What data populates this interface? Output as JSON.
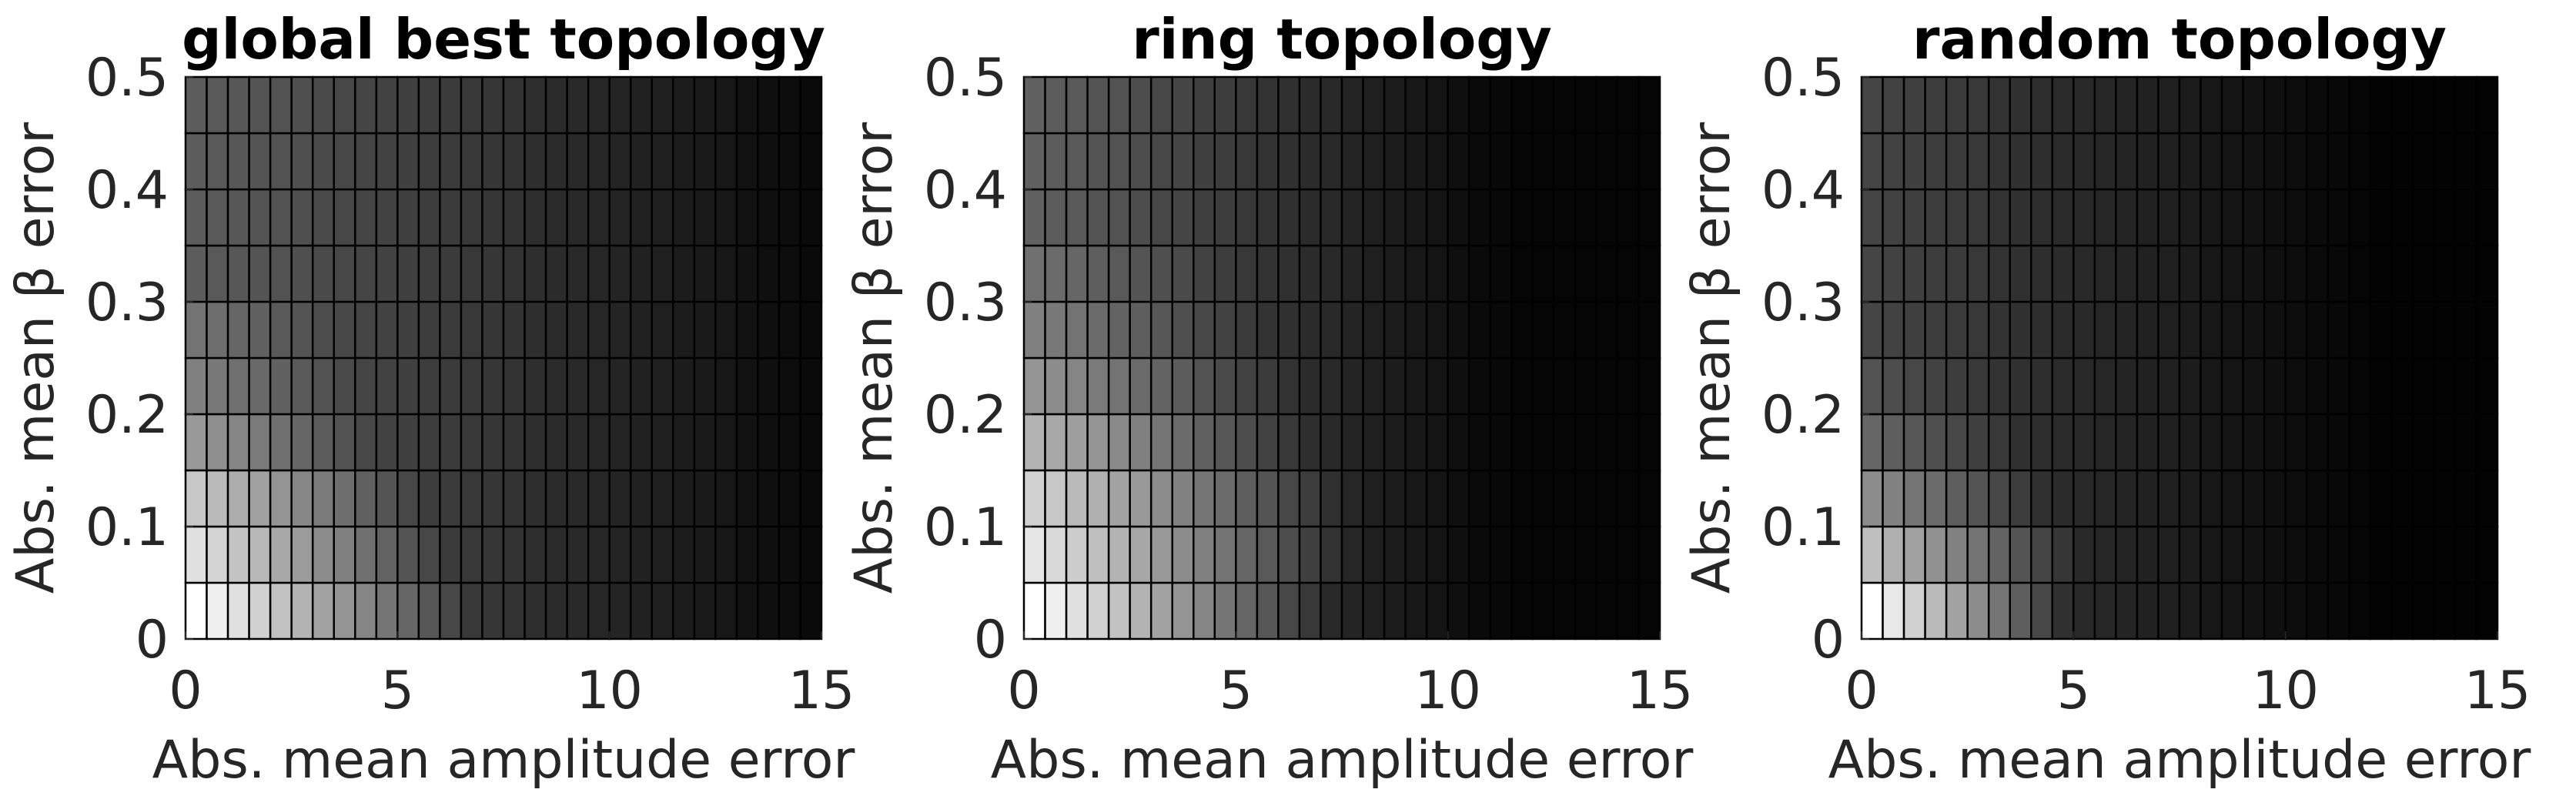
{
  "chart_data": [
    {
      "type": "heatmap",
      "title": "global best topology",
      "xlabel": "Abs. mean amplitude error",
      "ylabel": "Abs. mean β error",
      "colormap": "gray",
      "xlim": [
        0,
        15
      ],
      "ylim": [
        0,
        0.5
      ],
      "xticks": [
        0,
        5,
        10,
        15
      ],
      "yticks": [
        0,
        0.1,
        0.2,
        0.3,
        0.4,
        0.5
      ],
      "z": [
        [
          1,
          0.94,
          0.88,
          0.82,
          0.76,
          0.7,
          0.64,
          0.58,
          0.52,
          0.46,
          0.4,
          0.34,
          0.28,
          0.22,
          0.21,
          0.2,
          0.18,
          0.17,
          0.16,
          0.15,
          0.14,
          0.13,
          0.12,
          0.11,
          0.1,
          0.09,
          0.07,
          0.06,
          0.05,
          0.04
        ],
        [
          0.88,
          0.83,
          0.77,
          0.72,
          0.66,
          0.61,
          0.55,
          0.5,
          0.44,
          0.39,
          0.33,
          0.28,
          0.23,
          0.22,
          0.21,
          0.2,
          0.18,
          0.17,
          0.16,
          0.15,
          0.14,
          0.13,
          0.12,
          0.11,
          0.1,
          0.09,
          0.07,
          0.06,
          0.05,
          0.04
        ],
        [
          0.78,
          0.73,
          0.68,
          0.63,
          0.58,
          0.53,
          0.48,
          0.43,
          0.38,
          0.33,
          0.28,
          0.24,
          0.23,
          0.22,
          0.21,
          0.2,
          0.18,
          0.17,
          0.16,
          0.15,
          0.14,
          0.13,
          0.12,
          0.11,
          0.1,
          0.09,
          0.07,
          0.06,
          0.05,
          0.04
        ],
        [
          0.6,
          0.56,
          0.52,
          0.48,
          0.44,
          0.4,
          0.36,
          0.32,
          0.28,
          0.26,
          0.25,
          0.24,
          0.23,
          0.22,
          0.21,
          0.2,
          0.18,
          0.17,
          0.16,
          0.15,
          0.14,
          0.13,
          0.12,
          0.11,
          0.1,
          0.09,
          0.07,
          0.06,
          0.05,
          0.04
        ],
        [
          0.5,
          0.47,
          0.44,
          0.41,
          0.38,
          0.35,
          0.32,
          0.29,
          0.27,
          0.26,
          0.25,
          0.24,
          0.23,
          0.22,
          0.21,
          0.2,
          0.18,
          0.17,
          0.16,
          0.15,
          0.14,
          0.13,
          0.12,
          0.11,
          0.1,
          0.09,
          0.07,
          0.06,
          0.05,
          0.04
        ],
        [
          0.45,
          0.43,
          0.4,
          0.38,
          0.35,
          0.33,
          0.3,
          0.28,
          0.27,
          0.26,
          0.25,
          0.24,
          0.23,
          0.22,
          0.21,
          0.2,
          0.18,
          0.17,
          0.16,
          0.15,
          0.14,
          0.13,
          0.12,
          0.11,
          0.1,
          0.09,
          0.07,
          0.06,
          0.05,
          0.04
        ],
        [
          0.36,
          0.35,
          0.34,
          0.33,
          0.32,
          0.31,
          0.29,
          0.28,
          0.27,
          0.26,
          0.25,
          0.24,
          0.23,
          0.22,
          0.21,
          0.2,
          0.18,
          0.17,
          0.16,
          0.15,
          0.14,
          0.13,
          0.12,
          0.11,
          0.1,
          0.09,
          0.07,
          0.06,
          0.05,
          0.04
        ],
        [
          0.36,
          0.35,
          0.34,
          0.33,
          0.32,
          0.31,
          0.29,
          0.28,
          0.27,
          0.26,
          0.25,
          0.24,
          0.23,
          0.22,
          0.21,
          0.2,
          0.18,
          0.17,
          0.16,
          0.15,
          0.14,
          0.13,
          0.12,
          0.11,
          0.1,
          0.09,
          0.07,
          0.06,
          0.05,
          0.04
        ],
        [
          0.36,
          0.35,
          0.34,
          0.33,
          0.32,
          0.31,
          0.29,
          0.28,
          0.27,
          0.26,
          0.25,
          0.24,
          0.23,
          0.22,
          0.21,
          0.2,
          0.18,
          0.17,
          0.16,
          0.15,
          0.14,
          0.13,
          0.12,
          0.11,
          0.1,
          0.09,
          0.07,
          0.06,
          0.05,
          0.04
        ],
        [
          0.36,
          0.35,
          0.34,
          0.33,
          0.32,
          0.31,
          0.29,
          0.28,
          0.27,
          0.26,
          0.25,
          0.24,
          0.23,
          0.22,
          0.21,
          0.2,
          0.18,
          0.17,
          0.16,
          0.15,
          0.14,
          0.13,
          0.12,
          0.11,
          0.1,
          0.09,
          0.07,
          0.06,
          0.05,
          0.04
        ]
      ]
    },
    {
      "type": "heatmap",
      "title": "ring topology",
      "xlabel": "Abs. mean amplitude error",
      "ylabel": "Abs. mean β error",
      "colormap": "gray",
      "xlim": [
        0,
        15
      ],
      "ylim": [
        0,
        0.5
      ],
      "xticks": [
        0,
        5,
        10,
        15
      ],
      "yticks": [
        0,
        0.1,
        0.2,
        0.3,
        0.4,
        0.5
      ],
      "z": [
        [
          1,
          0.94,
          0.88,
          0.82,
          0.76,
          0.7,
          0.64,
          0.58,
          0.52,
          0.46,
          0.4,
          0.34,
          0.28,
          0.22,
          0.16,
          0.14,
          0.12,
          0.11,
          0.09,
          0.08,
          0.06,
          0.04,
          0.03,
          0.02,
          0.02,
          0.02,
          0.02,
          0.02,
          0.02,
          0.02
        ],
        [
          0.9,
          0.85,
          0.8,
          0.75,
          0.7,
          0.65,
          0.6,
          0.55,
          0.5,
          0.45,
          0.4,
          0.35,
          0.3,
          0.25,
          0.2,
          0.15,
          0.12,
          0.11,
          0.09,
          0.08,
          0.06,
          0.04,
          0.03,
          0.02,
          0.02,
          0.02,
          0.02,
          0.02,
          0.02,
          0.02
        ],
        [
          0.82,
          0.78,
          0.73,
          0.69,
          0.64,
          0.6,
          0.55,
          0.51,
          0.46,
          0.42,
          0.37,
          0.33,
          0.28,
          0.24,
          0.19,
          0.15,
          0.12,
          0.11,
          0.09,
          0.08,
          0.06,
          0.04,
          0.03,
          0.02,
          0.02,
          0.02,
          0.02,
          0.02,
          0.02,
          0.02
        ],
        [
          0.7,
          0.66,
          0.62,
          0.58,
          0.54,
          0.5,
          0.46,
          0.42,
          0.38,
          0.34,
          0.3,
          0.26,
          0.22,
          0.18,
          0.16,
          0.14,
          0.12,
          0.11,
          0.09,
          0.08,
          0.06,
          0.04,
          0.03,
          0.02,
          0.02,
          0.02,
          0.02,
          0.02,
          0.02,
          0.02
        ],
        [
          0.58,
          0.55,
          0.52,
          0.48,
          0.45,
          0.42,
          0.39,
          0.36,
          0.32,
          0.29,
          0.26,
          0.23,
          0.2,
          0.17,
          0.16,
          0.14,
          0.12,
          0.11,
          0.09,
          0.08,
          0.06,
          0.04,
          0.03,
          0.02,
          0.02,
          0.02,
          0.02,
          0.02,
          0.02,
          0.02
        ],
        [
          0.5,
          0.47,
          0.45,
          0.42,
          0.39,
          0.37,
          0.34,
          0.31,
          0.28,
          0.26,
          0.23,
          0.2,
          0.19,
          0.17,
          0.16,
          0.14,
          0.12,
          0.11,
          0.09,
          0.08,
          0.06,
          0.04,
          0.03,
          0.02,
          0.02,
          0.02,
          0.02,
          0.02,
          0.02,
          0.02
        ],
        [
          0.44,
          0.42,
          0.4,
          0.37,
          0.35,
          0.33,
          0.31,
          0.29,
          0.26,
          0.24,
          0.22,
          0.2,
          0.19,
          0.17,
          0.16,
          0.14,
          0.12,
          0.11,
          0.09,
          0.08,
          0.06,
          0.04,
          0.03,
          0.02,
          0.02,
          0.02,
          0.02,
          0.02,
          0.02,
          0.02
        ],
        [
          0.38,
          0.36,
          0.35,
          0.33,
          0.32,
          0.3,
          0.28,
          0.27,
          0.25,
          0.24,
          0.22,
          0.2,
          0.19,
          0.17,
          0.16,
          0.14,
          0.12,
          0.11,
          0.09,
          0.08,
          0.06,
          0.04,
          0.03,
          0.02,
          0.02,
          0.02,
          0.02,
          0.02,
          0.02,
          0.02
        ],
        [
          0.38,
          0.36,
          0.35,
          0.33,
          0.32,
          0.3,
          0.28,
          0.27,
          0.25,
          0.24,
          0.22,
          0.2,
          0.19,
          0.17,
          0.16,
          0.14,
          0.12,
          0.11,
          0.09,
          0.08,
          0.06,
          0.04,
          0.03,
          0.02,
          0.02,
          0.02,
          0.02,
          0.02,
          0.02,
          0.02
        ],
        [
          0.38,
          0.36,
          0.35,
          0.33,
          0.32,
          0.3,
          0.28,
          0.27,
          0.25,
          0.24,
          0.22,
          0.2,
          0.19,
          0.17,
          0.16,
          0.14,
          0.12,
          0.11,
          0.09,
          0.08,
          0.06,
          0.04,
          0.03,
          0.02,
          0.02,
          0.02,
          0.02,
          0.02,
          0.02,
          0.02
        ]
      ]
    },
    {
      "type": "heatmap",
      "title": "random topology",
      "xlabel": "Abs. mean amplitude error",
      "ylabel": "Abs. mean β error",
      "colormap": "gray",
      "xlim": [
        0,
        15
      ],
      "ylim": [
        0,
        0.5
      ],
      "xticks": [
        0,
        5,
        10,
        15
      ],
      "yticks": [
        0,
        0.1,
        0.2,
        0.3,
        0.4,
        0.5
      ],
      "z": [
        [
          1,
          0.91,
          0.82,
          0.73,
          0.64,
          0.55,
          0.46,
          0.37,
          0.28,
          0.19,
          0.16,
          0.15,
          0.14,
          0.13,
          0.12,
          0.11,
          0.09,
          0.08,
          0.07,
          0.06,
          0.05,
          0.04,
          0.03,
          0.02,
          0.01,
          0.01,
          0.01,
          0.01,
          0.01,
          0.01
        ],
        [
          0.75,
          0.69,
          0.63,
          0.57,
          0.51,
          0.45,
          0.39,
          0.33,
          0.27,
          0.21,
          0.16,
          0.15,
          0.14,
          0.13,
          0.12,
          0.11,
          0.09,
          0.08,
          0.07,
          0.06,
          0.05,
          0.04,
          0.03,
          0.02,
          0.01,
          0.01,
          0.01,
          0.01,
          0.01,
          0.01
        ],
        [
          0.55,
          0.51,
          0.46,
          0.42,
          0.37,
          0.33,
          0.28,
          0.24,
          0.19,
          0.17,
          0.16,
          0.15,
          0.14,
          0.13,
          0.12,
          0.11,
          0.09,
          0.08,
          0.07,
          0.06,
          0.05,
          0.04,
          0.03,
          0.02,
          0.01,
          0.01,
          0.01,
          0.01,
          0.01,
          0.01
        ],
        [
          0.4,
          0.37,
          0.34,
          0.31,
          0.28,
          0.25,
          0.22,
          0.19,
          0.18,
          0.17,
          0.16,
          0.15,
          0.14,
          0.13,
          0.12,
          0.11,
          0.09,
          0.08,
          0.07,
          0.06,
          0.05,
          0.04,
          0.03,
          0.02,
          0.01,
          0.01,
          0.01,
          0.01,
          0.01,
          0.01
        ],
        [
          0.32,
          0.3,
          0.28,
          0.26,
          0.24,
          0.22,
          0.2,
          0.19,
          0.18,
          0.17,
          0.16,
          0.15,
          0.14,
          0.13,
          0.12,
          0.11,
          0.09,
          0.08,
          0.07,
          0.06,
          0.05,
          0.04,
          0.03,
          0.02,
          0.01,
          0.01,
          0.01,
          0.01,
          0.01,
          0.01
        ],
        [
          0.27,
          0.26,
          0.25,
          0.24,
          0.23,
          0.22,
          0.2,
          0.19,
          0.18,
          0.17,
          0.16,
          0.15,
          0.14,
          0.13,
          0.12,
          0.11,
          0.09,
          0.08,
          0.07,
          0.06,
          0.05,
          0.04,
          0.03,
          0.02,
          0.01,
          0.01,
          0.01,
          0.01,
          0.01,
          0.01
        ],
        [
          0.27,
          0.26,
          0.25,
          0.24,
          0.23,
          0.22,
          0.2,
          0.19,
          0.18,
          0.17,
          0.16,
          0.15,
          0.14,
          0.13,
          0.12,
          0.11,
          0.09,
          0.08,
          0.07,
          0.06,
          0.05,
          0.04,
          0.03,
          0.02,
          0.01,
          0.01,
          0.01,
          0.01,
          0.01,
          0.01
        ],
        [
          0.27,
          0.26,
          0.25,
          0.24,
          0.23,
          0.22,
          0.2,
          0.19,
          0.18,
          0.17,
          0.16,
          0.15,
          0.14,
          0.13,
          0.12,
          0.11,
          0.09,
          0.08,
          0.07,
          0.06,
          0.05,
          0.04,
          0.03,
          0.02,
          0.01,
          0.01,
          0.01,
          0.01,
          0.01,
          0.01
        ],
        [
          0.27,
          0.26,
          0.25,
          0.24,
          0.23,
          0.22,
          0.2,
          0.19,
          0.18,
          0.17,
          0.16,
          0.15,
          0.14,
          0.13,
          0.12,
          0.11,
          0.09,
          0.08,
          0.07,
          0.06,
          0.05,
          0.04,
          0.03,
          0.02,
          0.01,
          0.01,
          0.01,
          0.01,
          0.01,
          0.01
        ],
        [
          0.27,
          0.26,
          0.25,
          0.24,
          0.23,
          0.22,
          0.2,
          0.19,
          0.18,
          0.17,
          0.16,
          0.15,
          0.14,
          0.13,
          0.12,
          0.11,
          0.09,
          0.08,
          0.07,
          0.06,
          0.05,
          0.04,
          0.03,
          0.02,
          0.01,
          0.01,
          0.01,
          0.01,
          0.01,
          0.01
        ]
      ]
    }
  ]
}
